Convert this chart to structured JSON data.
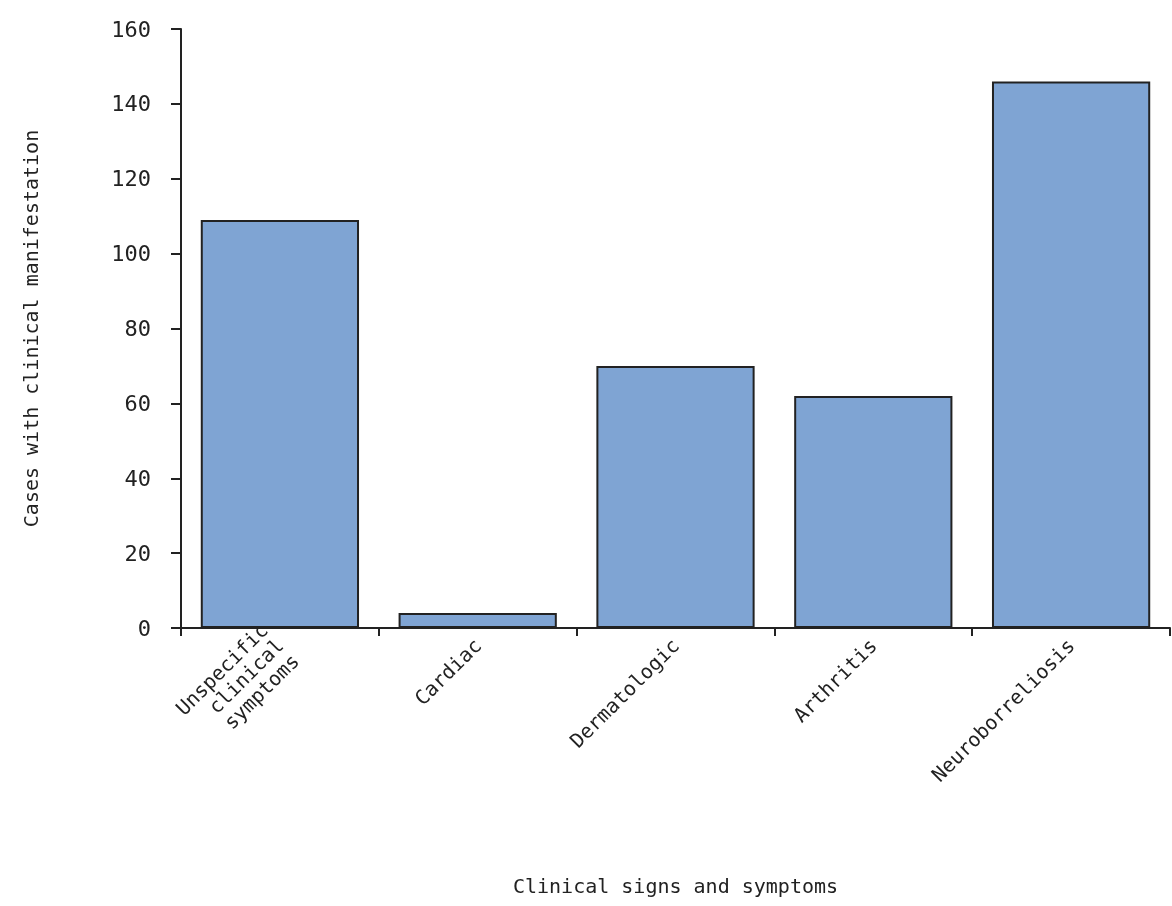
{
  "chart_data": {
    "type": "bar",
    "xlabel": "Clinical signs and symptoms",
    "ylabel": "Cases with clinical manifestation",
    "categories": [
      "Unspecific clinical symptoms",
      "Cardiac",
      "Dermatologic",
      "Arthritis",
      "Neuroborreliosis"
    ],
    "values": [
      109,
      4,
      70,
      62,
      146
    ],
    "color": "#7fa4d3",
    "ylim": [
      0,
      160
    ],
    "yticks": [
      0,
      20,
      40,
      60,
      80,
      100,
      120,
      140,
      160
    ],
    "grid": false
  }
}
